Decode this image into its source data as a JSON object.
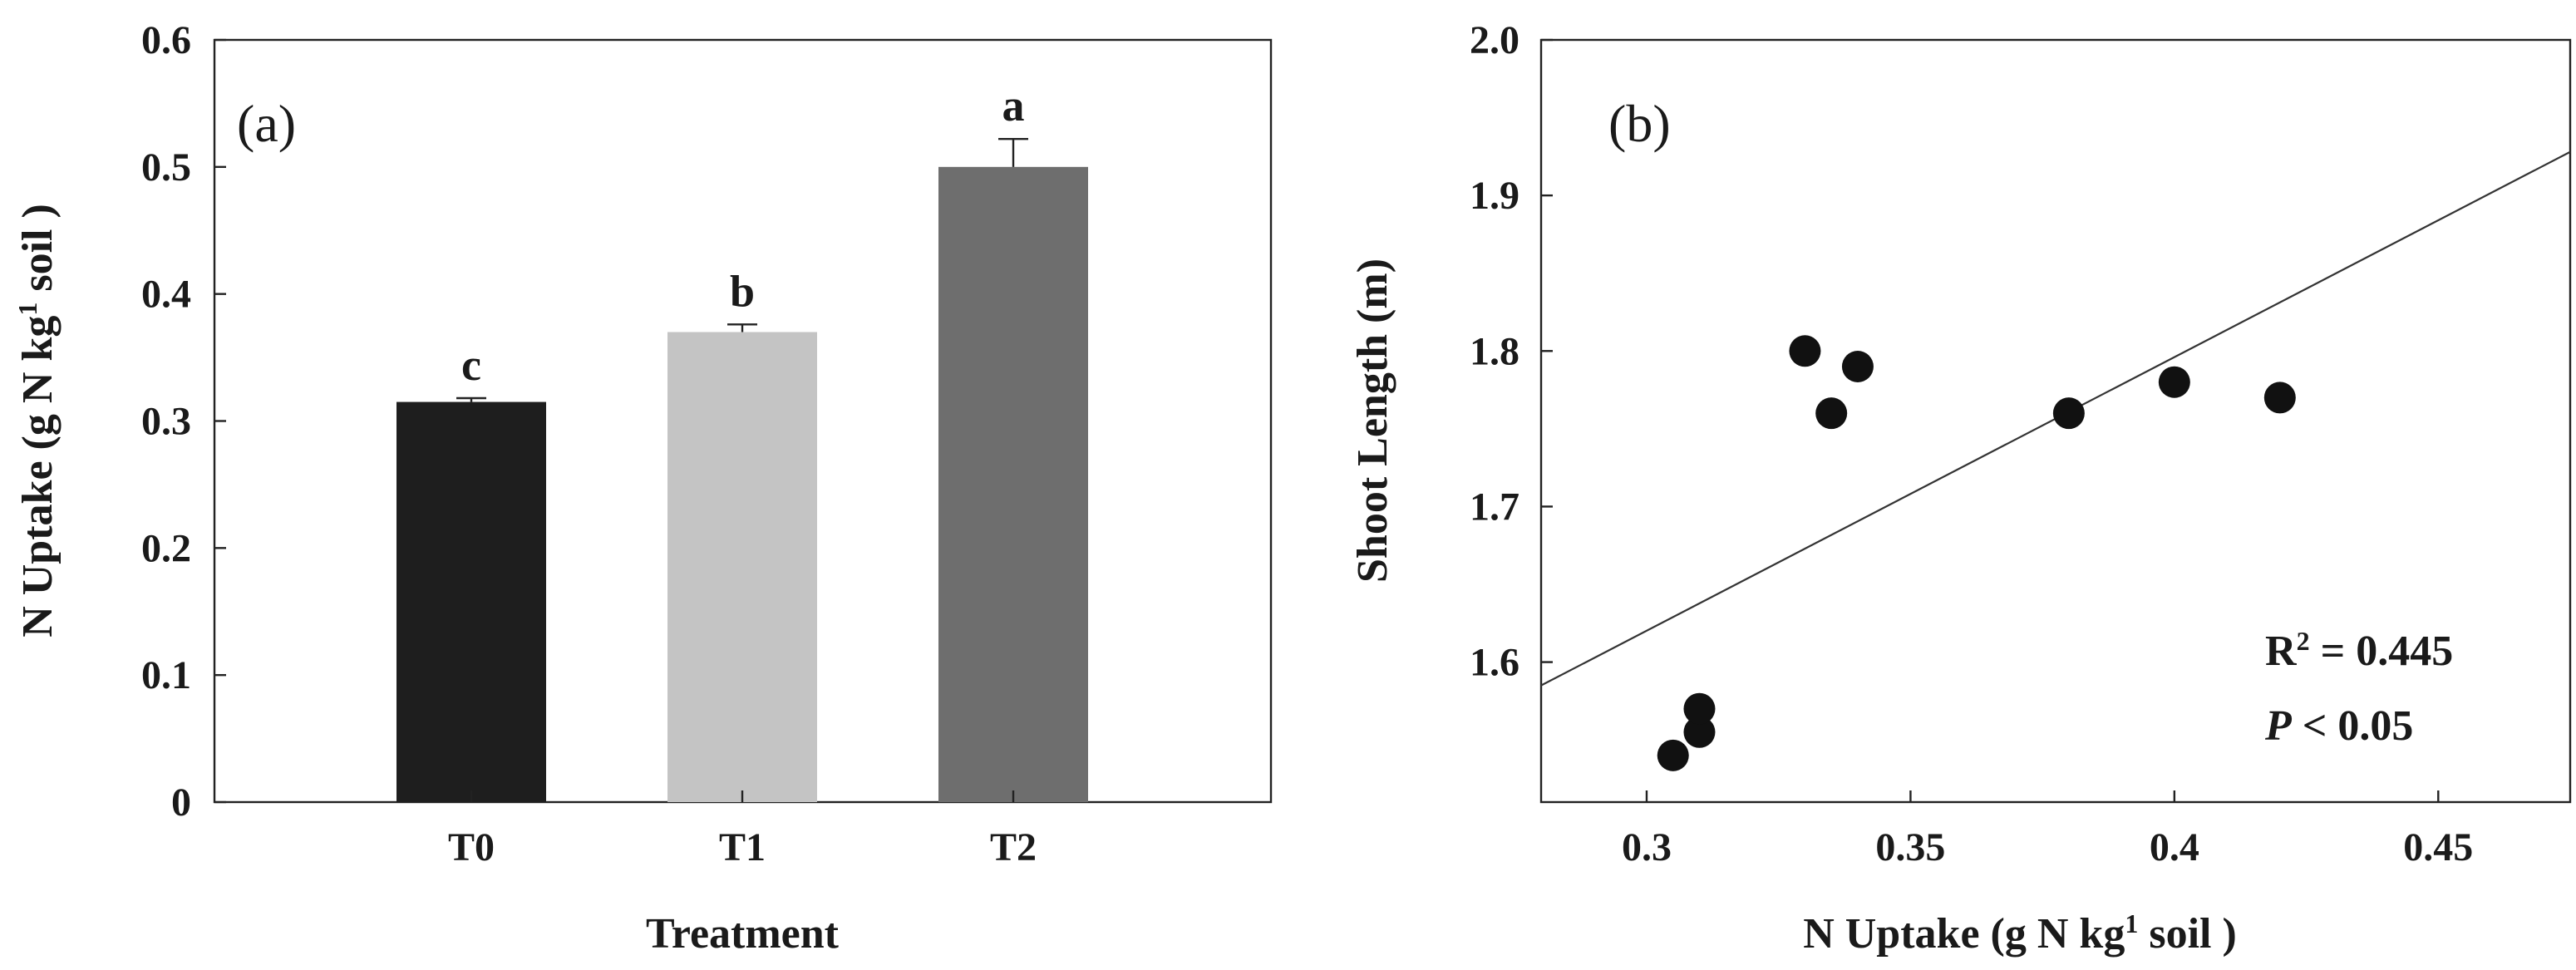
{
  "chart_data": [
    {
      "type": "bar",
      "panel_label": "(a)",
      "categories": [
        "T0",
        "T1",
        "T2"
      ],
      "values": [
        0.315,
        0.37,
        0.5
      ],
      "errors": [
        0.003,
        0.006,
        0.022
      ],
      "significance": [
        "c",
        "b",
        "a"
      ],
      "bar_colors": [
        "#1e1e1e",
        "#c4c4c4",
        "#6e6e6e"
      ],
      "xlabel": "Treatment",
      "ylabel_main": "N Uptake (g N kg",
      "ylabel_sup": "1",
      "ylabel_end": " soil )",
      "ylim": [
        0,
        0.6
      ],
      "yticks": [
        "0",
        "0.1",
        "0.2",
        "0.3",
        "0.4",
        "0.5",
        "0.6"
      ]
    },
    {
      "type": "scatter",
      "panel_label": "(b)",
      "x": [
        0.305,
        0.31,
        0.31,
        0.33,
        0.335,
        0.34,
        0.38,
        0.4,
        0.42
      ],
      "y": [
        1.54,
        1.555,
        1.57,
        1.8,
        1.76,
        1.79,
        1.76,
        1.78,
        1.77
      ],
      "regression": {
        "x": [
          0.28,
          0.475
        ],
        "y": [
          1.585,
          1.928
        ]
      },
      "xlabel_main": "N Uptake (g N kg",
      "xlabel_sup": "1",
      "xlabel_end": " soil )",
      "ylabel": "Shoot Length (m)",
      "xlim": [
        0.28,
        0.475
      ],
      "ylim": [
        1.51,
        2.0
      ],
      "xticks": [
        "0.3",
        "0.35",
        "0.4",
        "0.45"
      ],
      "yticks": [
        "1.6",
        "1.7",
        "1.8",
        "1.9",
        "2.0"
      ],
      "r2_label": "R",
      "r2_sup": "2",
      "r2_value": " = 0.445",
      "p_label": "P",
      "p_value": " < 0.05"
    }
  ]
}
